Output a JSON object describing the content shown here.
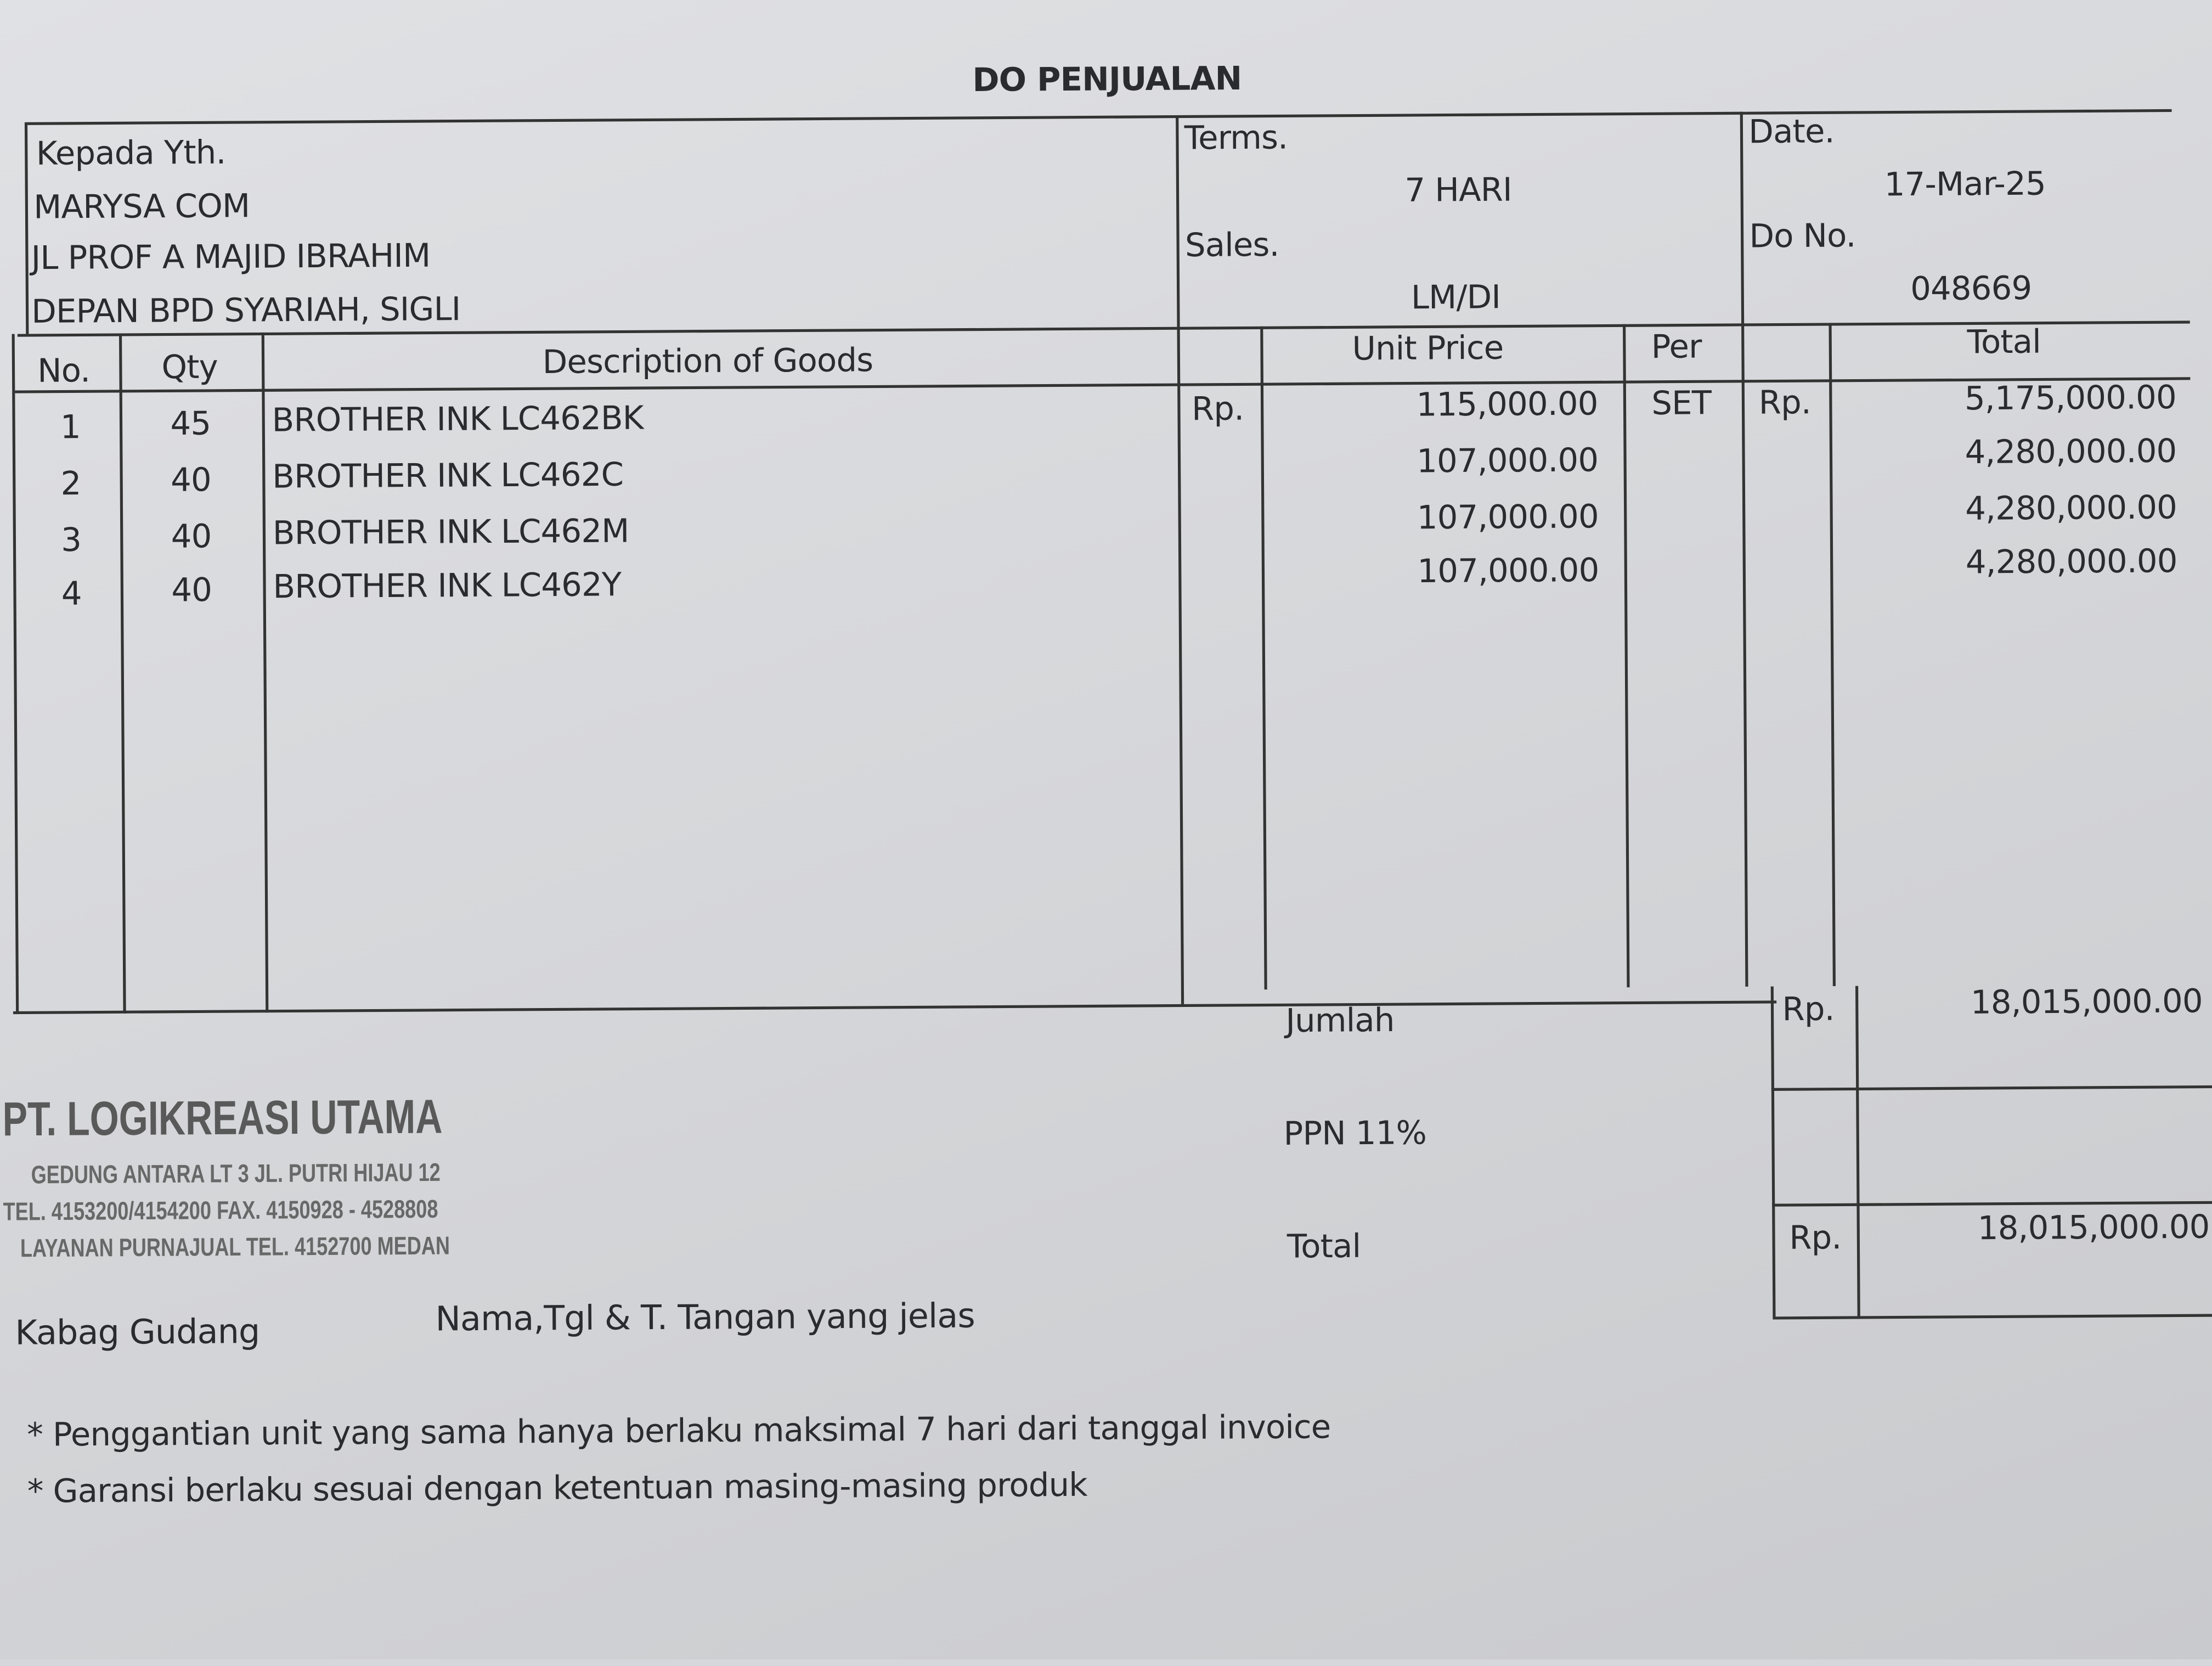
{
  "title": "DO PENJUALAN",
  "customer": {
    "label": "Kepada Yth.",
    "name": "MARYSA COM",
    "address1": "JL PROF A MAJID IBRAHIM",
    "address2": "DEPAN BPD SYARIAH, SIGLI"
  },
  "terms": {
    "label": "Terms.",
    "value": "7 HARI"
  },
  "sales": {
    "label": "Sales.",
    "value": "LM/DI"
  },
  "date": {
    "label": "Date.",
    "value": "17-Mar-25"
  },
  "do_no": {
    "label": "Do No.",
    "value": "048669"
  },
  "columns": {
    "no": "No.",
    "qty": "Qty",
    "desc": "Description of Goods",
    "unit_price": "Unit Price",
    "per": "Per",
    "total": "Total"
  },
  "currency": "Rp.",
  "items": [
    {
      "no": "1",
      "qty": "45",
      "desc": "BROTHER INK LC462BK",
      "unit_price": "115,000.00",
      "per": "SET",
      "total": "5,175,000.00"
    },
    {
      "no": "2",
      "qty": "40",
      "desc": "BROTHER INK LC462C",
      "unit_price": "107,000.00",
      "per": "",
      "total": "4,280,000.00"
    },
    {
      "no": "3",
      "qty": "40",
      "desc": "BROTHER INK LC462M",
      "unit_price": "107,000.00",
      "per": "",
      "total": "4,280,000.00"
    },
    {
      "no": "4",
      "qty": "40",
      "desc": "BROTHER INK LC462Y",
      "unit_price": "107,000.00",
      "per": "",
      "total": "4,280,000.00"
    }
  ],
  "summary": {
    "jumlah_label": "Jumlah",
    "jumlah_value": "18,015,000.00",
    "ppn_label": "PPN 11%",
    "ppn_value": "",
    "total_label": "Total",
    "total_value": "18,015,000.00"
  },
  "stamp": {
    "company": "PT. LOGIKREASI UTAMA",
    "address": "GEDUNG ANTARA LT 3 JL. PUTRI HIJAU 12",
    "phone": "TEL. 4153200/4154200 FAX. 4150928 - 4528808",
    "service": "LAYANAN PURNAJUAL TEL. 4152700 MEDAN"
  },
  "signature": {
    "warehouse": "Kabag Gudang",
    "instruction": "Nama,Tgl & T. Tangan yang jelas"
  },
  "notes": [
    "* Penggantian unit yang sama hanya berlaku maksimal 7 hari dari tanggal invoice",
    "* Garansi berlaku sesuai dengan ketentuan masing-masing produk"
  ]
}
